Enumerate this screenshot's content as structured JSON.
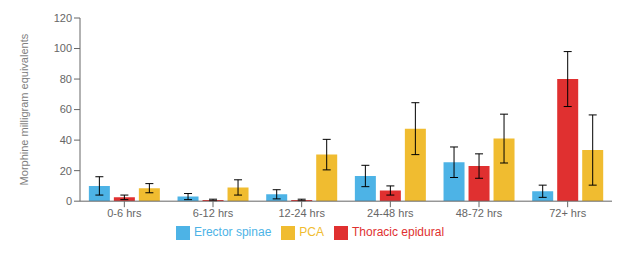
{
  "chart_data": {
    "type": "bar",
    "categories": [
      "0-6 hrs",
      "6-12 hrs",
      "12-24 hrs",
      "24-48 hrs",
      "48-72 hrs",
      "72+ hrs"
    ],
    "series": [
      {
        "name": "Erector spinae",
        "color": "#4db3e6",
        "values": [
          10,
          3,
          4.5,
          16.5,
          25.5,
          6.5
        ],
        "errors": [
          6,
          2,
          3,
          7,
          10,
          4
        ]
      },
      {
        "name": "Thoracic epidural",
        "color": "#e03030",
        "values": [
          2.5,
          0.8,
          0.8,
          7,
          23,
          80
        ],
        "errors": [
          1.5,
          0.5,
          0.5,
          3,
          8,
          18
        ]
      },
      {
        "name": "PCA",
        "color": "#f0bc30",
        "values": [
          8.5,
          9,
          30.5,
          47.5,
          41,
          33.5
        ],
        "errors": [
          3,
          5,
          10,
          17,
          16,
          23
        ]
      }
    ],
    "ylabel": "Morphine milligram equivalents",
    "ylim": [
      0,
      120
    ],
    "yticks": [
      0,
      20,
      40,
      60,
      80,
      100,
      120
    ],
    "legend": "bottom",
    "grid": false
  }
}
